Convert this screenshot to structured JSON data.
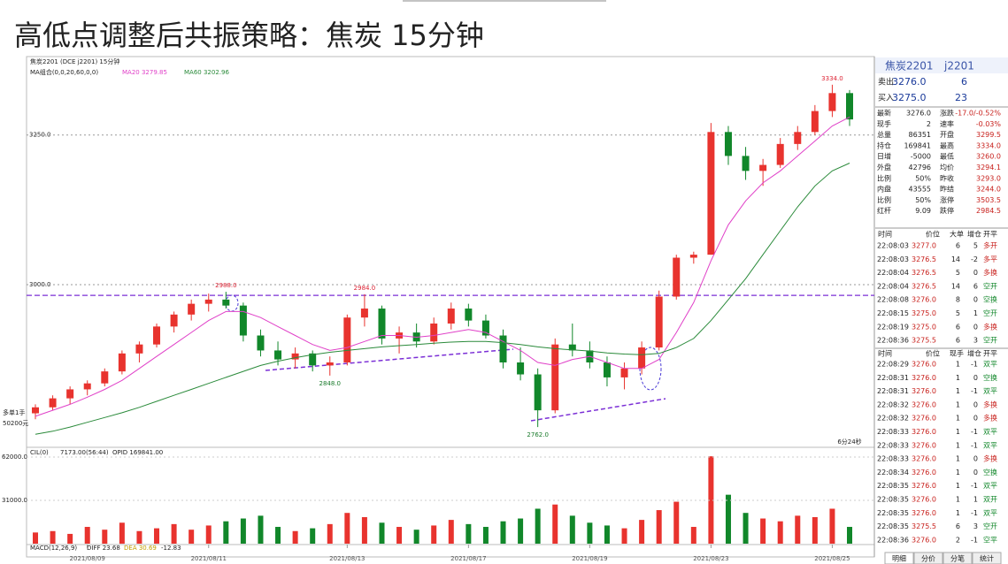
{
  "header": {
    "title": "高低点调整后共振策略：焦炭 15分钟"
  },
  "chart_data": {
    "type": "candlestick",
    "title": "焦炭2201 (DCE j2201) 15分钟",
    "indicator_label": "MA组合(0,0,20,60,0,0)",
    "categories": [
      null,
      null,
      null,
      "2021/08/09",
      null,
      null,
      null,
      null,
      null,
      null,
      "2021/08/11",
      null,
      null,
      null,
      null,
      null,
      null,
      null,
      "2021/08/13",
      null,
      null,
      null,
      null,
      null,
      null,
      "2021/08/17",
      null,
      null,
      null,
      null,
      null,
      null,
      "2021/08/19",
      null,
      null,
      null,
      null,
      null,
      null,
      "2021/08/23",
      null,
      null,
      null,
      null,
      null,
      null,
      "2021/08/25",
      null
    ],
    "open": [
      2785,
      2795,
      2810,
      2825,
      2835,
      2855,
      2885,
      2900,
      2930,
      2950,
      2968,
      2975,
      2965,
      2915,
      2890,
      2875,
      2885,
      2865,
      2870,
      2945,
      2960,
      2910,
      2920,
      2905,
      2935,
      2960,
      2940,
      2915,
      2870,
      2850,
      2790,
      2900,
      2890,
      2870,
      2845,
      2860,
      2895,
      2980,
      3045,
      3050,
      3255,
      3215,
      3190,
      3200,
      3235,
      3255,
      3290,
      3320
    ],
    "high": [
      2800,
      2815,
      2830,
      2840,
      2860,
      2890,
      2905,
      2935,
      2955,
      2975,
      2985,
      2988,
      2970,
      2925,
      2905,
      2895,
      2890,
      2880,
      2950,
      2984,
      2965,
      2930,
      2935,
      2945,
      2970,
      2968,
      2950,
      2925,
      2895,
      2860,
      2910,
      2935,
      2905,
      2880,
      2870,
      2905,
      2990,
      3050,
      3055,
      3270,
      3265,
      3230,
      3210,
      3245,
      3265,
      3300,
      3334,
      3325
    ],
    "low": [
      2775,
      2790,
      2800,
      2815,
      2830,
      2850,
      2870,
      2895,
      2920,
      2940,
      2955,
      2960,
      2905,
      2880,
      2865,
      2860,
      2855,
      2848,
      2865,
      2930,
      2900,
      2885,
      2895,
      2900,
      2925,
      2930,
      2910,
      2860,
      2840,
      2762,
      2785,
      2880,
      2860,
      2830,
      2825,
      2850,
      2890,
      2975,
      3035,
      3050,
      3200,
      3175,
      3165,
      3195,
      3225,
      3250,
      3280,
      3265
    ],
    "close": [
      2795,
      2810,
      2825,
      2835,
      2855,
      2885,
      2900,
      2930,
      2950,
      2968,
      2975,
      2965,
      2915,
      2890,
      2875,
      2885,
      2865,
      2870,
      2945,
      2960,
      2910,
      2920,
      2905,
      2935,
      2960,
      2940,
      2915,
      2870,
      2850,
      2790,
      2900,
      2890,
      2870,
      2845,
      2860,
      2895,
      2980,
      3045,
      3050,
      3255,
      3215,
      3190,
      3200,
      3235,
      3255,
      3290,
      3320,
      3276
    ],
    "up_color": "#e8332e",
    "down_color": "#11872a",
    "series": [
      {
        "name": "MA20 3279.85",
        "color": "#e040c8",
        "values": [
          2780,
          2790,
          2800,
          2812,
          2825,
          2840,
          2860,
          2880,
          2900,
          2920,
          2940,
          2955,
          2955,
          2945,
          2930,
          2915,
          2900,
          2890,
          2895,
          2905,
          2915,
          2915,
          2912,
          2915,
          2920,
          2925,
          2920,
          2905,
          2890,
          2870,
          2865,
          2875,
          2880,
          2870,
          2860,
          2860,
          2875,
          2920,
          2970,
          3040,
          3100,
          3140,
          3170,
          3190,
          3215,
          3240,
          3265,
          3280
        ]
      },
      {
        "name": "MA60 3202.96",
        "color": "#2a8a3a",
        "values": [
          2750,
          2755,
          2762,
          2770,
          2778,
          2786,
          2795,
          2805,
          2815,
          2825,
          2835,
          2845,
          2855,
          2865,
          2872,
          2878,
          2883,
          2887,
          2890,
          2893,
          2896,
          2898,
          2900,
          2902,
          2904,
          2905,
          2905,
          2903,
          2900,
          2896,
          2893,
          2891,
          2889,
          2886,
          2884,
          2883,
          2885,
          2895,
          2910,
          2940,
          2975,
          3010,
          3050,
          3090,
          3130,
          3165,
          3190,
          3203
        ]
      }
    ],
    "ylim": [
      2740,
      3350
    ],
    "yticks": [
      {
        "value": 3000,
        "label": "3000.0"
      },
      {
        "value": 3250,
        "label": "3250.0"
      }
    ],
    "hlines": [
      {
        "value": 2982,
        "color": "#7b2fd6"
      }
    ],
    "annotations": [
      {
        "value": 2988,
        "label": "2988.0"
      },
      {
        "value": 2984,
        "label": "2984.0"
      },
      {
        "value": 2848,
        "label": "2848.0"
      },
      {
        "value": 2762,
        "label": "2762.0"
      },
      {
        "value": 3334,
        "label": "3334.0"
      }
    ],
    "position_text": [
      "多单1手",
      "50200元"
    ],
    "timer": "6分24秒",
    "volume": [
      8000,
      9000,
      7000,
      12000,
      10000,
      15000,
      9000,
      11000,
      14000,
      10000,
      13000,
      16000,
      18000,
      20000,
      12000,
      9000,
      11000,
      14000,
      22000,
      19000,
      15000,
      12000,
      10000,
      13000,
      17000,
      14000,
      12000,
      16000,
      18000,
      25000,
      28000,
      20000,
      15000,
      13000,
      11000,
      17000,
      24000,
      30000,
      12000,
      62500,
      35000,
      22000,
      18000,
      16000,
      20000,
      19000,
      25000,
      12000
    ],
    "volume_ylim": [
      0,
      66400
    ],
    "volume_ticks": [
      {
        "value": 31000,
        "label": "31000.0"
      },
      {
        "value": 62000,
        "label": "62000.0"
      }
    ],
    "volume_panel": {
      "title": "CIL(0)",
      "value_text": "7173.00(56:44)",
      "opid": "OPID 169841.00"
    },
    "macd": {
      "title": "MACD(12,26,9)",
      "diff": "DIFF 23.68",
      "dea": "DEA 30.69",
      "macd": "-12.83"
    }
  },
  "quote": {
    "name": "焦炭2201",
    "code": "j2201",
    "book": [
      [
        "卖出",
        "3276.0",
        "6"
      ],
      [
        "买入",
        "3275.0",
        "23"
      ]
    ],
    "stats": [
      [
        "最新",
        "3276.0",
        "涨跌",
        "-17.0/-0.52%"
      ],
      [
        "现手",
        "2",
        "速率",
        "-0.03%"
      ],
      [
        "总量",
        "86351",
        "开盘",
        "3299.5"
      ],
      [
        "持仓",
        "169841",
        "最高",
        "3334.0"
      ],
      [
        "日增",
        "-5000",
        "最低",
        "3260.0"
      ],
      [
        "外盘",
        "42796",
        "均价",
        "3294.1"
      ],
      [
        "比例",
        "50%",
        "昨收",
        "3293.0"
      ],
      [
        "内盘",
        "43555",
        "昨结",
        "3244.0"
      ],
      [
        "比例",
        "50%",
        "涨停",
        "3503.5"
      ],
      [
        "红杆",
        "9.09",
        "跌停",
        "2984.5"
      ]
    ],
    "big_trades": {
      "header": [
        "时间",
        "价位",
        "大单",
        "增仓",
        "开平"
      ],
      "rows": [
        [
          "22:08:03",
          "3277.0",
          "6",
          "5",
          "多开"
        ],
        [
          "22:08:03",
          "3276.5",
          "14",
          "-2",
          "多平"
        ],
        [
          "22:08:04",
          "3276.5",
          "5",
          "0",
          "多换"
        ],
        [
          "22:08:04",
          "3276.5",
          "14",
          "6",
          "空开"
        ],
        [
          "22:08:08",
          "3276.0",
          "8",
          "0",
          "空换"
        ],
        [
          "22:08:15",
          "3275.0",
          "5",
          "1",
          "空开"
        ],
        [
          "22:08:19",
          "3275.0",
          "6",
          "0",
          "多换"
        ],
        [
          "22:08:36",
          "3275.5",
          "6",
          "3",
          "空开"
        ]
      ]
    },
    "trades": {
      "header": [
        "时间",
        "价位",
        "现手",
        "增仓",
        "开平"
      ],
      "rows": [
        [
          "22:08:29",
          "3276.0",
          "1",
          "-1",
          "双平"
        ],
        [
          "22:08:31",
          "3276.0",
          "1",
          "0",
          "空换"
        ],
        [
          "22:08:31",
          "3276.0",
          "1",
          "-1",
          "双平"
        ],
        [
          "22:08:32",
          "3276.0",
          "1",
          "0",
          "多换"
        ],
        [
          "22:08:32",
          "3276.0",
          "1",
          "0",
          "多换"
        ],
        [
          "22:08:33",
          "3276.0",
          "1",
          "-1",
          "双平"
        ],
        [
          "22:08:33",
          "3276.0",
          "1",
          "-1",
          "双平"
        ],
        [
          "22:08:33",
          "3276.0",
          "1",
          "0",
          "多换"
        ],
        [
          "22:08:34",
          "3276.0",
          "1",
          "0",
          "空换"
        ],
        [
          "22:08:35",
          "3276.0",
          "1",
          "-1",
          "双平"
        ],
        [
          "22:08:35",
          "3276.0",
          "1",
          "1",
          "双开"
        ],
        [
          "22:08:35",
          "3276.0",
          "1",
          "-1",
          "双平"
        ],
        [
          "22:08:35",
          "3275.5",
          "6",
          "3",
          "空开"
        ],
        [
          "22:08:36",
          "3276.0",
          "2",
          "-1",
          "空平"
        ]
      ]
    },
    "tabs": [
      "明细",
      "分价",
      "分笔",
      "统计"
    ]
  }
}
